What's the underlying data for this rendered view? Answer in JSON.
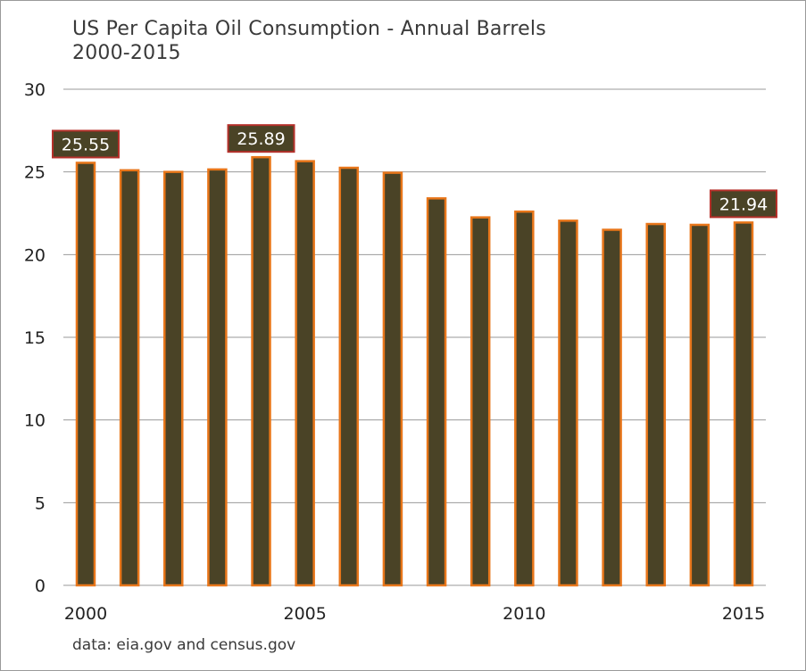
{
  "chart_data": {
    "type": "bar",
    "title": "US Per Capita Oil Consumption - Annual Barrels",
    "subtitle": "2000-2015",
    "xlabel": "",
    "ylabel": "",
    "categories": [
      "2000",
      "2001",
      "2002",
      "2003",
      "2004",
      "2005",
      "2006",
      "2007",
      "2008",
      "2009",
      "2010",
      "2011",
      "2012",
      "2013",
      "2014",
      "2015"
    ],
    "values": [
      25.55,
      25.1,
      25.0,
      25.15,
      25.89,
      25.65,
      25.25,
      24.95,
      23.4,
      22.25,
      22.6,
      22.05,
      21.5,
      21.85,
      21.8,
      21.94
    ],
    "ylim": [
      0,
      30
    ],
    "yticks": [
      "0",
      "5",
      "10",
      "15",
      "20",
      "25",
      "30"
    ],
    "xtick_labels": [
      {
        "index": 0,
        "label": "2000"
      },
      {
        "index": 5,
        "label": "2005"
      },
      {
        "index": 10,
        "label": "2010"
      },
      {
        "index": 15,
        "label": "2015"
      }
    ],
    "data_labels": [
      {
        "index": 0,
        "label": "25.55"
      },
      {
        "index": 4,
        "label": "25.89"
      },
      {
        "index": 15,
        "label": "21.94"
      }
    ],
    "grid": "horizontal",
    "legend": "none",
    "colors": {
      "bar_fill": "#4a4326",
      "bar_edge": "#e8761a",
      "label_box_fill": "#4a4326",
      "label_box_edge": "#b5302a",
      "label_text": "#ffffff",
      "gridline": "#9a9a9a",
      "axis_text": "#222222"
    }
  },
  "source_note": "data: eia.gov and census.gov"
}
